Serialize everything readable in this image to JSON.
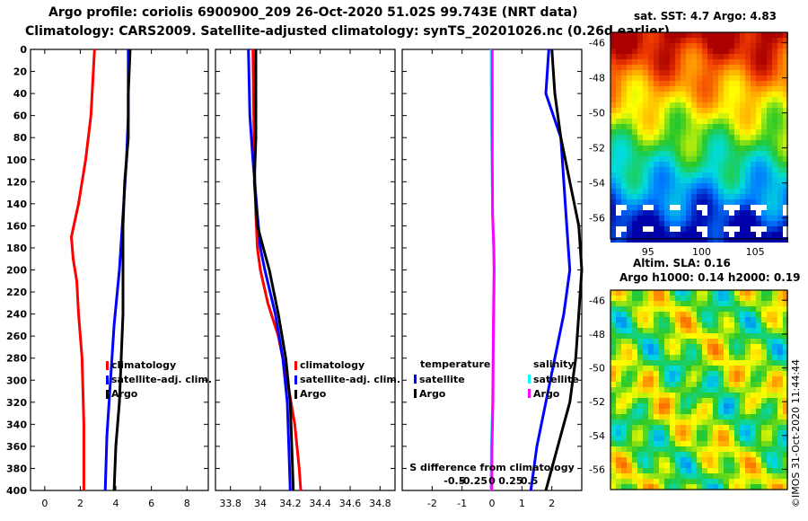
{
  "header": {
    "title_line1": "Argo profile: coriolis 6900900_209 26-Oct-2020 51.02S 99.743E (NRT data)",
    "title_line2": "Climatology: CARS2009. Satellite-adjusted climatology: synTS_20201026.nc (0.26d earlier)"
  },
  "watermark": "©IMOS 31-Oct-2020 11:44:44",
  "colors": {
    "red": "#ff0000",
    "blue": "#0000ff",
    "black": "#000000",
    "cyan": "#00ffff",
    "magenta": "#ff00ff"
  },
  "chart_data": [
    {
      "type": "line",
      "name": "temperature-profile",
      "xlim": [
        -0.8,
        9.2
      ],
      "ylim": [
        0,
        400
      ],
      "xticks": [
        "0",
        "2",
        "4",
        "6",
        "8"
      ],
      "xtick_values": [
        0,
        2,
        4,
        6,
        8
      ],
      "yticks": [
        "0",
        "20",
        "40",
        "60",
        "80",
        "100",
        "120",
        "140",
        "160",
        "180",
        "200",
        "220",
        "240",
        "260",
        "280",
        "300",
        "320",
        "340",
        "360",
        "380",
        "400"
      ],
      "ytick_values": [
        0,
        20,
        40,
        60,
        80,
        100,
        120,
        140,
        160,
        180,
        200,
        220,
        240,
        260,
        280,
        300,
        320,
        340,
        360,
        380,
        400
      ],
      "legend": [
        "climatology",
        "satellite-adj. clim.",
        "Argo"
      ],
      "series": [
        {
          "name": "climatology",
          "color": "#ff0000",
          "depth": [
            0,
            60,
            100,
            140,
            170,
            190,
            210,
            240,
            280,
            340,
            400
          ],
          "values": [
            2.8,
            2.6,
            2.3,
            1.9,
            1.5,
            1.6,
            1.8,
            1.9,
            2.1,
            2.2,
            2.2
          ]
        },
        {
          "name": "satellite-adj. clim.",
          "color": "#0000ff",
          "depth": [
            0,
            60,
            100,
            150,
            200,
            250,
            300,
            350,
            400
          ],
          "values": [
            4.7,
            4.7,
            4.6,
            4.4,
            4.2,
            3.9,
            3.7,
            3.5,
            3.4
          ]
        },
        {
          "name": "Argo",
          "color": "#000000",
          "depth": [
            0,
            40,
            80,
            120,
            160,
            200,
            240,
            280,
            320,
            360,
            400
          ],
          "values": [
            4.8,
            4.7,
            4.7,
            4.5,
            4.4,
            4.4,
            4.4,
            4.3,
            4.2,
            4.0,
            3.9
          ]
        }
      ]
    },
    {
      "type": "line",
      "name": "salinity-profile",
      "xlim": [
        33.7,
        34.9
      ],
      "ylim": [
        0,
        400
      ],
      "xticks": [
        "33.8",
        "34",
        "34.2",
        "34.4",
        "34.6",
        "34.8"
      ],
      "xtick_values": [
        33.8,
        34.0,
        34.2,
        34.4,
        34.6,
        34.8
      ],
      "legend": [
        "climatology",
        "satellite-adj. clim.",
        "Argo"
      ],
      "series": [
        {
          "name": "climatology",
          "color": "#ff0000",
          "depth": [
            0,
            100,
            150,
            180,
            200,
            230,
            260,
            300,
            340,
            380,
            400
          ],
          "values": [
            33.95,
            33.96,
            33.97,
            33.98,
            34.0,
            34.05,
            34.12,
            34.18,
            34.23,
            34.26,
            34.27
          ]
        },
        {
          "name": "satellite-adj. clim.",
          "color": "#0000ff",
          "depth": [
            0,
            60,
            100,
            150,
            180,
            200,
            240,
            280,
            320,
            360,
            400
          ],
          "values": [
            33.92,
            33.93,
            33.95,
            33.98,
            34.0,
            34.03,
            34.1,
            34.15,
            34.18,
            34.19,
            34.2
          ]
        },
        {
          "name": "Argo",
          "color": "#000000",
          "depth": [
            0,
            40,
            80,
            120,
            160,
            180,
            200,
            240,
            280,
            320,
            360,
            400
          ],
          "values": [
            33.97,
            33.97,
            33.97,
            33.96,
            33.98,
            34.02,
            34.06,
            34.12,
            34.17,
            34.2,
            34.21,
            34.22
          ]
        }
      ]
    },
    {
      "type": "line",
      "name": "difference-from-climatology",
      "xlim": [
        -3,
        3
      ],
      "ylim": [
        0,
        400
      ],
      "xticks_top": [
        "-2",
        "-1",
        "0",
        "1",
        "2"
      ],
      "xtick_values_top": [
        -2,
        -1,
        0,
        1,
        2
      ],
      "xticks_bottom": [
        "-0.5",
        "-0.25",
        "0",
        "0.25",
        "0.5"
      ],
      "xtick_values_bottom": [
        -0.5,
        -0.25,
        0,
        0.25,
        0.5
      ],
      "xlabel": "S difference from climatology",
      "legend_temperature_title": "temperature",
      "legend_salinity_title": "salinity",
      "legend": [
        "satellite",
        "Argo",
        "satellite",
        "Argo"
      ],
      "series": [
        {
          "name": "temperature satellite",
          "color": "#0000ff",
          "depth": [
            0,
            40,
            80,
            120,
            160,
            200,
            240,
            280,
            320,
            360,
            400
          ],
          "values": [
            1.9,
            1.8,
            2.3,
            2.4,
            2.5,
            2.6,
            2.4,
            2.1,
            1.8,
            1.5,
            1.3
          ]
        },
        {
          "name": "temperature Argo",
          "color": "#000000",
          "depth": [
            0,
            40,
            80,
            120,
            160,
            200,
            240,
            280,
            320,
            360,
            400
          ],
          "values": [
            2.0,
            2.1,
            2.3,
            2.6,
            2.9,
            3.0,
            2.9,
            2.8,
            2.6,
            2.2,
            1.8
          ]
        },
        {
          "name": "salinity satellite",
          "color": "#00ffff",
          "depth": [
            0,
            60,
            100,
            150,
            180,
            200,
            240,
            280,
            320,
            360,
            400
          ],
          "values": [
            -0.03,
            -0.02,
            0.0,
            0.02,
            0.06,
            0.08,
            0.06,
            0.04,
            0.02,
            -0.02,
            -0.04
          ]
        },
        {
          "name": "salinity Argo",
          "color": "#ff00ff",
          "depth": [
            0,
            60,
            100,
            150,
            180,
            200,
            240,
            280,
            320,
            360,
            400
          ],
          "values": [
            0.01,
            0.01,
            0.01,
            0.02,
            0.06,
            0.07,
            0.05,
            0.04,
            0.03,
            0.0,
            -0.01
          ]
        }
      ]
    },
    {
      "type": "heatmap",
      "name": "sst-map",
      "title": "sat. SST: 4.7 Argo: 4.83",
      "xticks": [
        "95",
        "100",
        "105"
      ],
      "xtick_values": [
        95,
        100,
        105
      ],
      "yticks": [
        "-46",
        "-48",
        "-50",
        "-52",
        "-54",
        "-56"
      ],
      "ytick_values": [
        -46,
        -48,
        -50,
        -52,
        -54,
        -56
      ],
      "xlim": [
        91.5,
        108
      ],
      "ylim": [
        -57.2,
        -45.4
      ]
    },
    {
      "type": "heatmap",
      "name": "sla-map",
      "title_line1": "Altim. SLA: 0.16",
      "title_line2": "Argo h1000: 0.14 h2000: 0.19",
      "yticks": [
        "-46",
        "-48",
        "-50",
        "-52",
        "-54",
        "-56"
      ],
      "ytick_values": [
        -46,
        -48,
        -50,
        -52,
        -54,
        -56
      ],
      "ylim": [
        -57.2,
        -45.4
      ]
    }
  ]
}
